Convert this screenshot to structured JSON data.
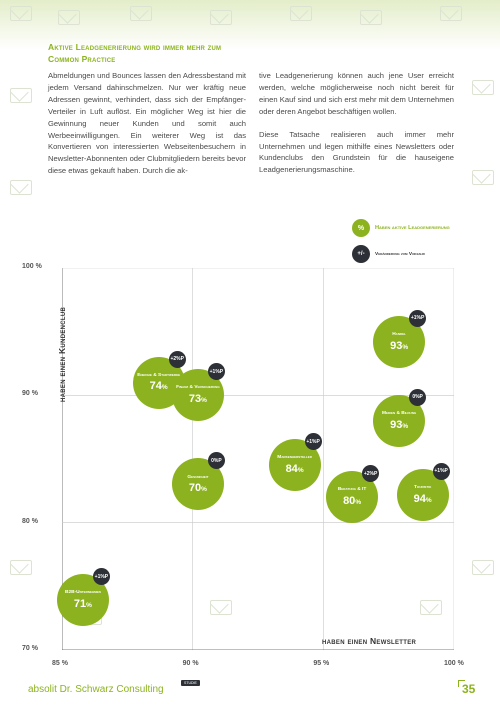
{
  "headline": "Aktive Leadgenerierung wird immer mehr zum Common Practice",
  "column1": "Abmeldungen und Bounces lassen den Adressbestand mit jedem Versand dahinschmelzen. Nur wer kräftig neue Adressen gewinnt, verhindert, dass sich der Empfänger-Verteiler in Luft auflöst. Ein möglicher Weg ist hier die Gewinnung neuer Kunden und somit auch Werbeeinwilligungen. Ein weiterer Weg ist das Konvertieren von interessierten Webseitenbesuchern in Newsletter-Abonnenten oder Clubmitgliedern bereits bevor diese etwas gekauft haben. Durch die ak-",
  "column2_p1": "tive Leadgenerierung können auch jene User erreicht werden, welche möglicherweise noch nicht bereit für einen Kauf sind und sich erst mehr mit dem Unternehmen oder deren Angebot beschäftigen wollen.",
  "column2_p2": "Diese Tatsache realisieren auch immer mehr Unternehmen und legen mithilfe eines Newsletters oder Kundenclubs den Grundstein für die hauseigene Leadgenerierungsmaschine.",
  "legend": {
    "pct_symbol": "%",
    "pct_label": "Haben aktive Leadgenerierung",
    "chg_symbol": "+/-",
    "chg_label": "Veränderung zum Vorjahr"
  },
  "chart_data": {
    "type": "scatter",
    "xlabel": "haben einen Newsletter",
    "ylabel": "haben einen Kundenclub",
    "xlim": [
      85,
      100
    ],
    "ylim": [
      70,
      100
    ],
    "x_ticks": [
      "85 %",
      "90 %",
      "95 %",
      "100 %"
    ],
    "y_ticks": [
      "100 %",
      "90 %",
      "80 %",
      "70 %"
    ],
    "grid": true,
    "points": [
      {
        "name": "B2B-Unternehmen",
        "x": 85.8,
        "y": 73.9,
        "value": 71,
        "change": "+1%P"
      },
      {
        "name": "Energie & Stadtwerke",
        "x": 88.7,
        "y": 91.0,
        "value": 74,
        "change": "+2%P"
      },
      {
        "name": "Finanz & Versicherung",
        "x": 90.2,
        "y": 90.0,
        "value": 73,
        "change": "+1%P"
      },
      {
        "name": "Gesundheit",
        "x": 90.2,
        "y": 83.0,
        "value": 70,
        "change": "0%P"
      },
      {
        "name": "Markenhersteller",
        "x": 93.9,
        "y": 84.5,
        "value": 84,
        "change": "+1%P"
      },
      {
        "name": "Beratung & IT",
        "x": 96.1,
        "y": 82.0,
        "value": 80,
        "change": "+2%P"
      },
      {
        "name": "Handel",
        "x": 97.9,
        "y": 94.2,
        "value": 93,
        "change": "+1%P"
      },
      {
        "name": "Medien & Bildung",
        "x": 97.9,
        "y": 88.0,
        "value": 93,
        "change": "0%P"
      },
      {
        "name": "Touristik",
        "x": 98.8,
        "y": 82.2,
        "value": 94,
        "change": "+1%P"
      }
    ]
  },
  "footer": {
    "brand": "absolit Dr. Schwarz Consulting",
    "tag": "STUDIE",
    "page": "35"
  }
}
